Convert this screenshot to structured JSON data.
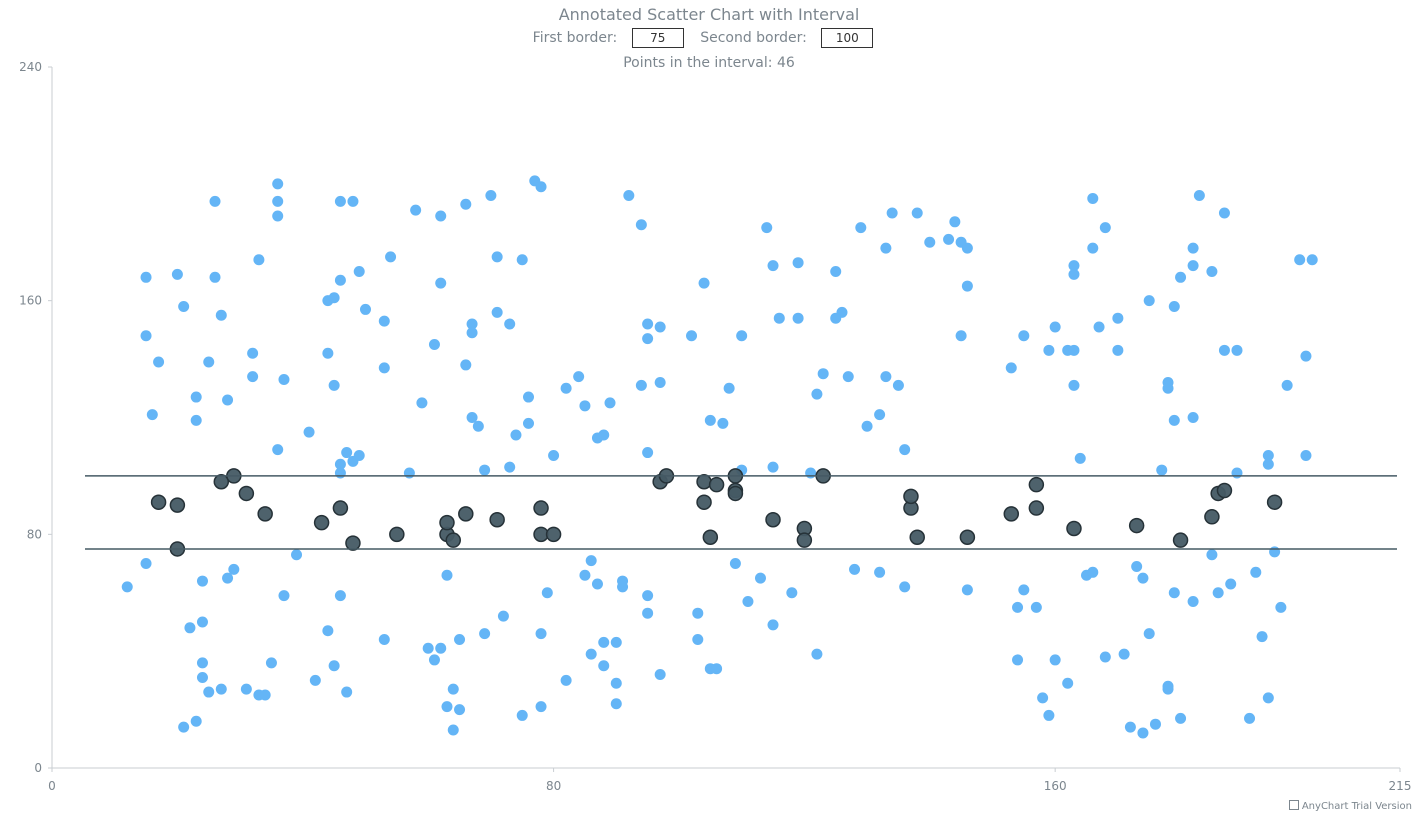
{
  "chart_data": {
    "type": "scatter",
    "title": "Annotated Scatter Chart with Interval",
    "first_border_label": "First border:",
    "second_border_label": "Second border:",
    "first_border": 75,
    "second_border": 100,
    "count_label": "Points in the interval:",
    "count": 46,
    "xlim": [
      0,
      215
    ],
    "ylim": [
      0,
      240
    ],
    "x_ticks": [
      "0",
      "80",
      "160",
      "215"
    ],
    "y_ticks": [
      "0",
      "80",
      "160",
      "240"
    ],
    "grid": false,
    "colors": {
      "outside": "#64b5f6",
      "inside": "#455a64",
      "border_line": "#455a64"
    },
    "points": [
      [
        12,
        62
      ],
      [
        15,
        70
      ],
      [
        15,
        148
      ],
      [
        15,
        168
      ],
      [
        16,
        121
      ],
      [
        17,
        139
      ],
      [
        20,
        169
      ],
      [
        21,
        158
      ],
      [
        21,
        14
      ],
      [
        22,
        48
      ],
      [
        23,
        16
      ],
      [
        23,
        127
      ],
      [
        23,
        119
      ],
      [
        24,
        36
      ],
      [
        24,
        31
      ],
      [
        24,
        64
      ],
      [
        24,
        50
      ],
      [
        25,
        139
      ],
      [
        25,
        26
      ],
      [
        26,
        168
      ],
      [
        26,
        194
      ],
      [
        27,
        155
      ],
      [
        27,
        27
      ],
      [
        28,
        65
      ],
      [
        28,
        126
      ],
      [
        29,
        68
      ],
      [
        31,
        27
      ],
      [
        32,
        142
      ],
      [
        32,
        134
      ],
      [
        33,
        174
      ],
      [
        33,
        25
      ],
      [
        34,
        25
      ],
      [
        35,
        36
      ],
      [
        36,
        189
      ],
      [
        36,
        194
      ],
      [
        36,
        200
      ],
      [
        36,
        109
      ],
      [
        37,
        59
      ],
      [
        37,
        133
      ],
      [
        39,
        73
      ],
      [
        41,
        115
      ],
      [
        42,
        30
      ],
      [
        44,
        47
      ],
      [
        44,
        142
      ],
      [
        44,
        160
      ],
      [
        45,
        161
      ],
      [
        45,
        131
      ],
      [
        45,
        35
      ],
      [
        46,
        104
      ],
      [
        46,
        101
      ],
      [
        46,
        59
      ],
      [
        46,
        194
      ],
      [
        46,
        167
      ],
      [
        47,
        108
      ],
      [
        47,
        26
      ],
      [
        48,
        194
      ],
      [
        48,
        105
      ],
      [
        49,
        170
      ],
      [
        49,
        107
      ],
      [
        50,
        157
      ],
      [
        53,
        44
      ],
      [
        53,
        137
      ],
      [
        53,
        153
      ],
      [
        54,
        175
      ],
      [
        57,
        101
      ],
      [
        58,
        191
      ],
      [
        59,
        125
      ],
      [
        60,
        41
      ],
      [
        61,
        145
      ],
      [
        61,
        37
      ],
      [
        62,
        41
      ],
      [
        62,
        166
      ],
      [
        62,
        189
      ],
      [
        63,
        66
      ],
      [
        63,
        21
      ],
      [
        64,
        13
      ],
      [
        64,
        27
      ],
      [
        65,
        20
      ],
      [
        65,
        44
      ],
      [
        66,
        193
      ],
      [
        66,
        138
      ],
      [
        67,
        120
      ],
      [
        67,
        149
      ],
      [
        67,
        152
      ],
      [
        68,
        117
      ],
      [
        69,
        46
      ],
      [
        69,
        102
      ],
      [
        70,
        196
      ],
      [
        71,
        175
      ],
      [
        71,
        156
      ],
      [
        72,
        52
      ],
      [
        73,
        103
      ],
      [
        73,
        152
      ],
      [
        74,
        114
      ],
      [
        75,
        174
      ],
      [
        75,
        18
      ],
      [
        76,
        118
      ],
      [
        76,
        127
      ],
      [
        77,
        201
      ],
      [
        78,
        199
      ],
      [
        78,
        46
      ],
      [
        78,
        21
      ],
      [
        79,
        60
      ],
      [
        80,
        107
      ],
      [
        82,
        130
      ],
      [
        82,
        30
      ],
      [
        84,
        134
      ],
      [
        85,
        66
      ],
      [
        85,
        124
      ],
      [
        86,
        71
      ],
      [
        86,
        39
      ],
      [
        87,
        63
      ],
      [
        87,
        113
      ],
      [
        88,
        35
      ],
      [
        88,
        43
      ],
      [
        88,
        114
      ],
      [
        89,
        125
      ],
      [
        90,
        43
      ],
      [
        90,
        29
      ],
      [
        90,
        22
      ],
      [
        91,
        62
      ],
      [
        91,
        64
      ],
      [
        92,
        196
      ],
      [
        94,
        186
      ],
      [
        94,
        131
      ],
      [
        95,
        108
      ],
      [
        95,
        147
      ],
      [
        95,
        152
      ],
      [
        95,
        53
      ],
      [
        95,
        59
      ],
      [
        97,
        132
      ],
      [
        97,
        151
      ],
      [
        97,
        32
      ],
      [
        102,
        148
      ],
      [
        103,
        53
      ],
      [
        103,
        44
      ],
      [
        104,
        166
      ],
      [
        105,
        119
      ],
      [
        105,
        34
      ],
      [
        106,
        34
      ],
      [
        107,
        118
      ],
      [
        108,
        130
      ],
      [
        109,
        70
      ],
      [
        110,
        102
      ],
      [
        110,
        148
      ],
      [
        111,
        57
      ],
      [
        113,
        65
      ],
      [
        114,
        185
      ],
      [
        115,
        103
      ],
      [
        115,
        172
      ],
      [
        115,
        49
      ],
      [
        116,
        154
      ],
      [
        118,
        60
      ],
      [
        119,
        173
      ],
      [
        119,
        154
      ],
      [
        121,
        101
      ],
      [
        122,
        39
      ],
      [
        122,
        128
      ],
      [
        123,
        135
      ],
      [
        125,
        154
      ],
      [
        125,
        170
      ],
      [
        126,
        156
      ],
      [
        127,
        134
      ],
      [
        128,
        68
      ],
      [
        129,
        185
      ],
      [
        130,
        117
      ],
      [
        132,
        67
      ],
      [
        132,
        121
      ],
      [
        133,
        134
      ],
      [
        133,
        178
      ],
      [
        134,
        190
      ],
      [
        135,
        131
      ],
      [
        136,
        62
      ],
      [
        136,
        109
      ],
      [
        138,
        190
      ],
      [
        140,
        180
      ],
      [
        143,
        181
      ],
      [
        144,
        187
      ],
      [
        145,
        180
      ],
      [
        145,
        148
      ],
      [
        146,
        178
      ],
      [
        146,
        165
      ],
      [
        146,
        61
      ],
      [
        153,
        137
      ],
      [
        154,
        37
      ],
      [
        154,
        55
      ],
      [
        155,
        61
      ],
      [
        155,
        148
      ],
      [
        157,
        55
      ],
      [
        158,
        24
      ],
      [
        159,
        18
      ],
      [
        159,
        143
      ],
      [
        160,
        37
      ],
      [
        160,
        151
      ],
      [
        162,
        29
      ],
      [
        162,
        143
      ],
      [
        163,
        143
      ],
      [
        163,
        131
      ],
      [
        163,
        169
      ],
      [
        163,
        172
      ],
      [
        164,
        106
      ],
      [
        165,
        66
      ],
      [
        166,
        67
      ],
      [
        166,
        178
      ],
      [
        166,
        195
      ],
      [
        167,
        151
      ],
      [
        168,
        185
      ],
      [
        168,
        38
      ],
      [
        170,
        154
      ],
      [
        170,
        143
      ],
      [
        171,
        39
      ],
      [
        172,
        14
      ],
      [
        173,
        69
      ],
      [
        174,
        65
      ],
      [
        174,
        12
      ],
      [
        175,
        46
      ],
      [
        175,
        160
      ],
      [
        176,
        15
      ],
      [
        177,
        102
      ],
      [
        178,
        132
      ],
      [
        178,
        130
      ],
      [
        178,
        28
      ],
      [
        178,
        27
      ],
      [
        179,
        60
      ],
      [
        179,
        119
      ],
      [
        179,
        158
      ],
      [
        180,
        17
      ],
      [
        180,
        168
      ],
      [
        182,
        57
      ],
      [
        182,
        120
      ],
      [
        182,
        178
      ],
      [
        182,
        172
      ],
      [
        183,
        196
      ],
      [
        185,
        170
      ],
      [
        185,
        73
      ],
      [
        186,
        60
      ],
      [
        187,
        143
      ],
      [
        187,
        190
      ],
      [
        188,
        63
      ],
      [
        189,
        143
      ],
      [
        189,
        101
      ],
      [
        191,
        17
      ],
      [
        192,
        67
      ],
      [
        193,
        45
      ],
      [
        194,
        24
      ],
      [
        194,
        107
      ],
      [
        194,
        104
      ],
      [
        195,
        74
      ],
      [
        196,
        55
      ],
      [
        197,
        131
      ],
      [
        199,
        174
      ],
      [
        200,
        107
      ],
      [
        200,
        141
      ],
      [
        201,
        174
      ],
      [
        17,
        91
      ],
      [
        20,
        90
      ],
      [
        20,
        75
      ],
      [
        27,
        98
      ],
      [
        29,
        100
      ],
      [
        31,
        94
      ],
      [
        34,
        87
      ],
      [
        43,
        84
      ],
      [
        46,
        89
      ],
      [
        48,
        77
      ],
      [
        55,
        80
      ],
      [
        63,
        80
      ],
      [
        63,
        84
      ],
      [
        64,
        78
      ],
      [
        66,
        87
      ],
      [
        71,
        85
      ],
      [
        78,
        89
      ],
      [
        78,
        80
      ],
      [
        80,
        80
      ],
      [
        97,
        98
      ],
      [
        98,
        100
      ],
      [
        104,
        98
      ],
      [
        104,
        91
      ],
      [
        105,
        79
      ],
      [
        106,
        97
      ],
      [
        109,
        95
      ],
      [
        109,
        94
      ],
      [
        109,
        100
      ],
      [
        115,
        85
      ],
      [
        120,
        82
      ],
      [
        120,
        78
      ],
      [
        123,
        100
      ],
      [
        137,
        89
      ],
      [
        137,
        93
      ],
      [
        138,
        79
      ],
      [
        146,
        79
      ],
      [
        153,
        87
      ],
      [
        157,
        97
      ],
      [
        157,
        89
      ],
      [
        163,
        82
      ],
      [
        173,
        83
      ],
      [
        180,
        78
      ],
      [
        185,
        86
      ],
      [
        186,
        94
      ],
      [
        187,
        95
      ],
      [
        195,
        91
      ]
    ]
  },
  "credit": "AnyChart Trial Version"
}
